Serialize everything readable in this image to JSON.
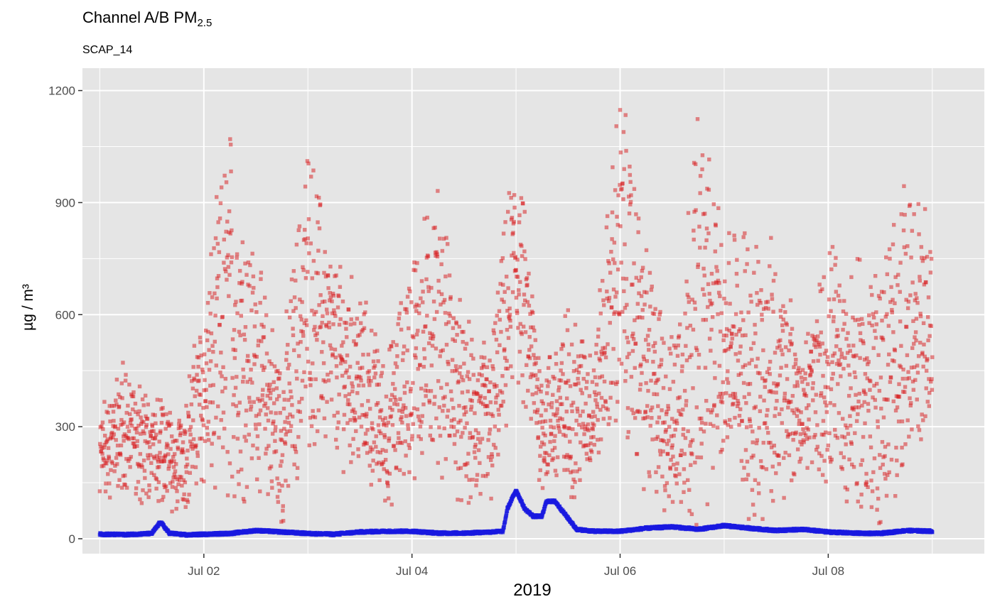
{
  "chart_data": {
    "type": "scatter",
    "title": "Channel A/B PM",
    "title_subscript": "2.5",
    "subtitle": "SCAP_14",
    "xlabel": "2019",
    "ylabel": "µg / m³",
    "x_range": [
      "2019-07-01 00:00",
      "2019-07-09 00:00"
    ],
    "xlim": [
      "2019-06-30 20:00",
      "2019-07-09 12:00"
    ],
    "ylim": [
      -40,
      1260
    ],
    "grid": true,
    "background": "#e5e5e5",
    "x_ticks": [
      "Jul 02",
      "Jul 04",
      "Jul 06",
      "Jul 08"
    ],
    "y_ticks": [
      "0",
      "300",
      "600",
      "900",
      "1200"
    ],
    "series": [
      {
        "color": "#d7191c",
        "opacity": 0.5,
        "point_estimate": "scattered values, mostly 100-700, max about 1180",
        "envelope": [
          [
            "2019-07-01 00:00",
            130,
            330
          ],
          [
            "2019-07-01 06:00",
            150,
            460
          ],
          [
            "2019-07-01 12:00",
            100,
            380
          ],
          [
            "2019-07-01 18:00",
            80,
            300
          ],
          [
            "2019-07-02 00:00",
            160,
            620
          ],
          [
            "2019-07-02 06:00",
            120,
            1075
          ],
          [
            "2019-07-02 12:00",
            200,
            720
          ],
          [
            "2019-07-02 18:00",
            40,
            470
          ],
          [
            "2019-07-03 00:00",
            300,
            1040
          ],
          [
            "2019-07-03 06:00",
            250,
            720
          ],
          [
            "2019-07-03 12:00",
            200,
            650
          ],
          [
            "2019-07-03 18:00",
            100,
            450
          ],
          [
            "2019-07-04 00:00",
            200,
            750
          ],
          [
            "2019-07-04 06:00",
            250,
            910
          ],
          [
            "2019-07-04 12:00",
            100,
            550
          ],
          [
            "2019-07-04 18:00",
            80,
            500
          ],
          [
            "2019-07-05 00:00",
            450,
            1040
          ],
          [
            "2019-07-05 06:00",
            150,
            450
          ],
          [
            "2019-07-05 12:00",
            120,
            600
          ],
          [
            "2019-07-05 18:00",
            200,
            500
          ],
          [
            "2019-07-06 00:00",
            350,
            1180
          ],
          [
            "2019-07-06 06:00",
            150,
            750
          ],
          [
            "2019-07-06 12:00",
            80,
            500
          ],
          [
            "2019-07-06 18:00",
            100,
            1115
          ],
          [
            "2019-07-07 00:00",
            250,
            800
          ],
          [
            "2019-07-07 06:00",
            100,
            800
          ],
          [
            "2019-07-07 12:00",
            80,
            750
          ],
          [
            "2019-07-07 18:00",
            200,
            500
          ],
          [
            "2019-07-08 00:00",
            150,
            750
          ],
          [
            "2019-07-08 06:00",
            100,
            700
          ],
          [
            "2019-07-08 12:00",
            50,
            700
          ],
          [
            "2019-07-08 18:00",
            200,
            935
          ],
          [
            "2019-07-09 00:00",
            350,
            780
          ]
        ]
      },
      {
        "color": "#1a1ae0",
        "opacity": 0.7,
        "points": [
          [
            "2019-07-01 00:00",
            12
          ],
          [
            "2019-07-01 06:00",
            11
          ],
          [
            "2019-07-01 12:00",
            14
          ],
          [
            "2019-07-01 14:00",
            45
          ],
          [
            "2019-07-01 16:00",
            15
          ],
          [
            "2019-07-01 20:00",
            10
          ],
          [
            "2019-07-02 00:00",
            12
          ],
          [
            "2019-07-02 06:00",
            14
          ],
          [
            "2019-07-02 12:00",
            22
          ],
          [
            "2019-07-02 18:00",
            18
          ],
          [
            "2019-07-03 00:00",
            14
          ],
          [
            "2019-07-03 06:00",
            12
          ],
          [
            "2019-07-03 12:00",
            18
          ],
          [
            "2019-07-03 18:00",
            20
          ],
          [
            "2019-07-04 00:00",
            20
          ],
          [
            "2019-07-04 06:00",
            15
          ],
          [
            "2019-07-04 12:00",
            15
          ],
          [
            "2019-07-04 18:00",
            18
          ],
          [
            "2019-07-04 21:00",
            20
          ],
          [
            "2019-07-04 22:00",
            80
          ],
          [
            "2019-07-05 00:00",
            130
          ],
          [
            "2019-07-05 02:00",
            80
          ],
          [
            "2019-07-05 04:00",
            60
          ],
          [
            "2019-07-05 06:00",
            60
          ],
          [
            "2019-07-05 07:00",
            100
          ],
          [
            "2019-07-05 09:00",
            100
          ],
          [
            "2019-07-05 11:00",
            70
          ],
          [
            "2019-07-05 14:00",
            25
          ],
          [
            "2019-07-05 18:00",
            20
          ],
          [
            "2019-07-06 00:00",
            20
          ],
          [
            "2019-07-06 06:00",
            28
          ],
          [
            "2019-07-06 12:00",
            32
          ],
          [
            "2019-07-06 18:00",
            25
          ],
          [
            "2019-07-07 00:00",
            35
          ],
          [
            "2019-07-07 06:00",
            28
          ],
          [
            "2019-07-07 12:00",
            22
          ],
          [
            "2019-07-07 18:00",
            25
          ],
          [
            "2019-07-08 00:00",
            18
          ],
          [
            "2019-07-08 06:00",
            15
          ],
          [
            "2019-07-08 12:00",
            14
          ],
          [
            "2019-07-08 18:00",
            22
          ],
          [
            "2019-07-09 00:00",
            20
          ]
        ]
      }
    ]
  }
}
